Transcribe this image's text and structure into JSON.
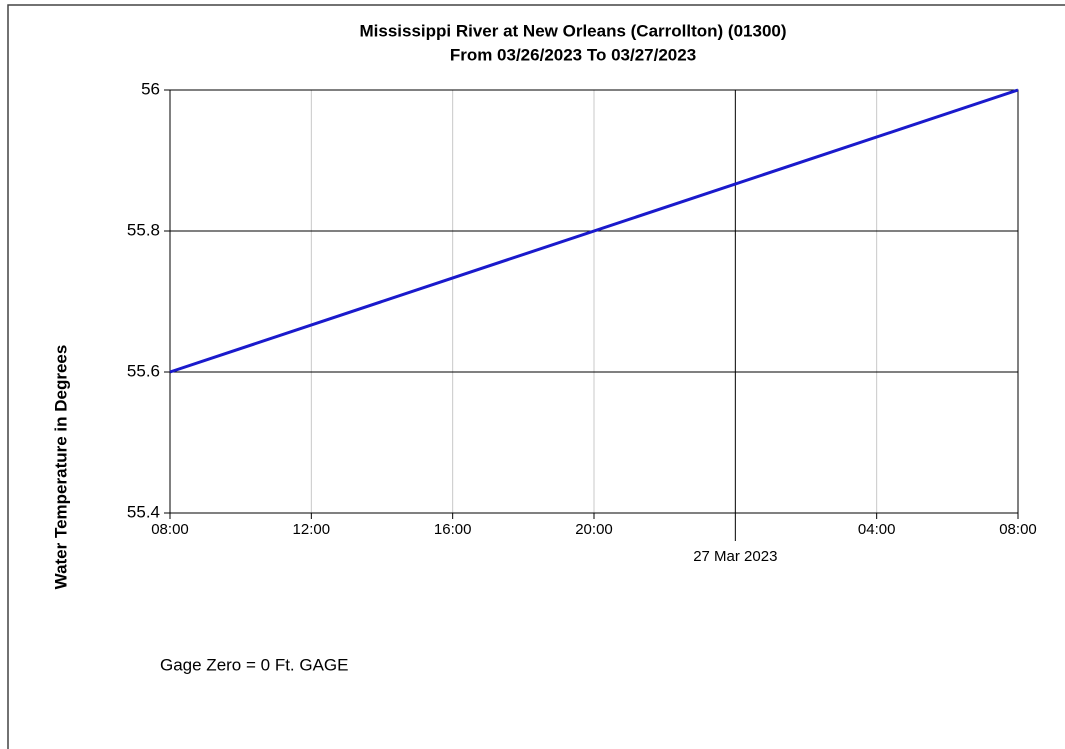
{
  "chart_data": {
    "type": "line",
    "title": "Mississippi River at New Orleans (Carrollton) (01300)",
    "subtitle": "From 03/26/2023 To 03/27/2023",
    "y_label": "Water Temperature in Degrees",
    "annotation": "Gage Zero = 0 Ft. GAGE",
    "x": [
      "2023-03-26T08:00",
      "2023-03-27T08:00"
    ],
    "values": [
      55.6,
      56
    ],
    "color": "#1a1acc",
    "xlim": [
      "2023-03-26T08:00",
      "2023-03-27T08:00"
    ],
    "xticks": [
      {
        "value": "2023-03-26T08:00",
        "label": "08:00"
      },
      {
        "value": "2023-03-26T12:00",
        "label": "12:00"
      },
      {
        "value": "2023-03-26T16:00",
        "label": "16:00"
      },
      {
        "value": "2023-03-26T20:00",
        "label": "20:00"
      },
      {
        "value": "2023-03-27T00:00",
        "label": "27 Mar 2023"
      },
      {
        "value": "2023-03-27T04:00",
        "label": "04:00"
      },
      {
        "value": "2023-03-27T08:00",
        "label": "08:00"
      }
    ],
    "ylim": [
      55.4,
      56
    ],
    "yticks": [
      55.4,
      55.6,
      55.8,
      56
    ],
    "grid": true
  }
}
